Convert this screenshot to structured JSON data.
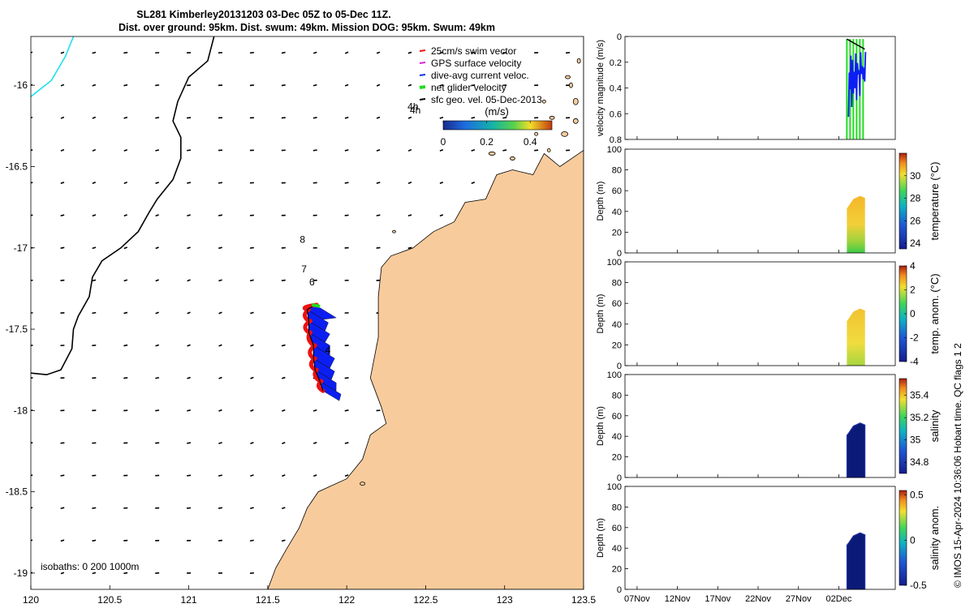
{
  "title_line1": "SL281 Kimberley20131203 03-Dec 05Z to 05-Dec 11Z.",
  "title_line2": "Dist. over ground: 95km. Dist. swum: 49km. Mission DOG: 95km. Swum: 49km",
  "isobaths_label": "isobaths: 0   200  1000m",
  "footer_text": "© IMOS 15-Apr-2024 10:36:06 Hobart time. QC flags 1  2",
  "colors": {
    "land": "#f8cb9c",
    "isobath200": "#000000",
    "isobath1000": "#22e0ec",
    "glider_blue": "#0b1ff2",
    "glider_red": "#ee1111",
    "glider_green": "#22dd22",
    "salinity_dark": "#0b1a78"
  },
  "chart_data": [
    {
      "type": "scatter",
      "name": "map",
      "xlim": [
        120,
        123.5
      ],
      "ylim": [
        -19.1,
        -15.7
      ],
      "x_ticks": [
        120,
        120.5,
        121,
        121.5,
        122,
        122.5,
        123,
        123.5
      ],
      "x_tick_labels": [
        "120",
        "120.5",
        "121",
        "121.5",
        "122",
        "122.5",
        "123",
        "123.5"
      ],
      "y_ticks": [
        -16,
        -16.5,
        -17,
        -17.5,
        -18,
        -18.5,
        -19
      ],
      "y_tick_labels": [
        "-16",
        "-16.5",
        "-17",
        "-17.5",
        "-18",
        "-18.5",
        "-19"
      ],
      "legend_entries": [
        "25cm/s swim vector",
        "GPS surface velocity",
        "dive-avg current veloc.",
        "net glider velocity",
        "sfc geo. vel. 05-Dec-2013"
      ],
      "legend_colors": [
        "#ee1111",
        "#dd22dd",
        "#1133ee",
        "#22dd22",
        "#000000"
      ],
      "legend_placement": "top-right",
      "colorbar_label": "(m/s)",
      "colorbar_range": [
        0,
        0.5
      ],
      "colorbar_ticks": [
        0,
        0.2,
        0.4
      ],
      "colorbar_tick_labels": [
        "0",
        "0.2",
        "0.4"
      ],
      "time_labels": [
        {
          "text": "4h",
          "lon": 122.42,
          "lat": -16.15
        },
        {
          "text": "8",
          "lon": 121.72,
          "lat": -16.97
        },
        {
          "text": "7",
          "lon": 121.73,
          "lat": -17.15
        },
        {
          "text": "6",
          "lon": 121.78,
          "lat": -17.23
        },
        {
          "text": "4",
          "lon": 121.88,
          "lat": -17.65
        }
      ],
      "glider_track": [
        [
          121.85,
          -17.88
        ],
        [
          121.83,
          -17.82
        ],
        [
          121.8,
          -17.75
        ],
        [
          121.79,
          -17.68
        ],
        [
          121.79,
          -17.6
        ],
        [
          121.76,
          -17.52
        ],
        [
          121.76,
          -17.45
        ],
        [
          121.75,
          -17.38
        ],
        [
          121.8,
          -17.35
        ]
      ],
      "isobath_200m": [
        [
          121.16,
          -15.7
        ],
        [
          121.12,
          -15.85
        ],
        [
          121.0,
          -15.95
        ],
        [
          120.93,
          -16.1
        ],
        [
          120.9,
          -16.22
        ],
        [
          120.95,
          -16.32
        ],
        [
          120.95,
          -16.45
        ],
        [
          120.9,
          -16.58
        ],
        [
          120.8,
          -16.7
        ],
        [
          120.75,
          -16.78
        ],
        [
          120.68,
          -16.9
        ],
        [
          120.57,
          -17.0
        ],
        [
          120.45,
          -17.08
        ],
        [
          120.39,
          -17.18
        ],
        [
          120.37,
          -17.3
        ],
        [
          120.3,
          -17.42
        ],
        [
          120.27,
          -17.5
        ],
        [
          120.26,
          -17.62
        ],
        [
          120.19,
          -17.75
        ],
        [
          120.1,
          -17.78
        ],
        [
          120.0,
          -17.77
        ]
      ],
      "isobath_1000m": [
        [
          120.27,
          -15.7
        ],
        [
          120.22,
          -15.82
        ],
        [
          120.13,
          -15.97
        ],
        [
          120.0,
          -16.07
        ]
      ],
      "coastline": [
        [
          123.5,
          -15.7
        ],
        [
          123.5,
          -16.4
        ],
        [
          123.35,
          -16.5
        ],
        [
          123.25,
          -16.42
        ],
        [
          123.18,
          -16.55
        ],
        [
          123.05,
          -16.52
        ],
        [
          122.95,
          -16.55
        ],
        [
          122.88,
          -16.7
        ],
        [
          122.75,
          -16.72
        ],
        [
          122.68,
          -16.84
        ],
        [
          122.55,
          -16.9
        ],
        [
          122.42,
          -17.0
        ],
        [
          122.28,
          -17.05
        ],
        [
          122.22,
          -17.12
        ],
        [
          122.2,
          -17.3
        ],
        [
          122.2,
          -17.55
        ],
        [
          122.15,
          -17.8
        ],
        [
          122.22,
          -17.98
        ],
        [
          122.25,
          -18.08
        ],
        [
          122.15,
          -18.15
        ],
        [
          122.1,
          -18.3
        ],
        [
          122.0,
          -18.42
        ],
        [
          121.82,
          -18.5
        ],
        [
          121.75,
          -18.6
        ],
        [
          121.7,
          -18.72
        ],
        [
          121.62,
          -18.85
        ],
        [
          121.55,
          -18.97
        ],
        [
          121.5,
          -19.1
        ],
        [
          123.5,
          -19.1
        ]
      ]
    },
    {
      "type": "line",
      "name": "velocity",
      "ylabel": "velocity magnitude (m/s)",
      "ylim": [
        0,
        0.8
      ],
      "y_ticks": [
        0,
        0.2,
        0.4,
        0.6,
        0.8
      ],
      "y_tick_labels": [
        "0",
        "0.2",
        "0.4",
        "0.6",
        "0.8"
      ]
    },
    {
      "type": "heatmap",
      "name": "temperature",
      "ylabel": "Depth (m)",
      "colorbar_label": "temperature (°C)",
      "ylim": [
        100,
        0
      ],
      "y_ticks": [
        0,
        20,
        40,
        60,
        80,
        100
      ],
      "y_tick_labels": [
        "0",
        "20",
        "40",
        "60",
        "80",
        "100"
      ],
      "colorbar_range": [
        23.5,
        32
      ],
      "colorbar_ticks": [
        24,
        26,
        28,
        30
      ],
      "colorbar_tick_labels": [
        "24",
        "26",
        "28",
        "30"
      ],
      "max_depth": 55
    },
    {
      "type": "heatmap",
      "name": "temp_anom",
      "ylabel": "Depth (m)",
      "colorbar_label": "temp. anom. (°C)",
      "ylim": [
        100,
        0
      ],
      "y_ticks": [
        0,
        20,
        40,
        60,
        80,
        100
      ],
      "y_tick_labels": [
        "0",
        "20",
        "40",
        "60",
        "80",
        "100"
      ],
      "colorbar_range": [
        -4,
        4
      ],
      "colorbar_ticks": [
        -4,
        -2,
        0,
        2,
        4
      ],
      "colorbar_tick_labels": [
        "-4",
        "-2",
        "0",
        "2",
        "4"
      ],
      "max_depth": 55
    },
    {
      "type": "heatmap",
      "name": "salinity",
      "ylabel": "Depth (m)",
      "colorbar_label": "salinity",
      "ylim": [
        100,
        0
      ],
      "y_ticks": [
        0,
        20,
        40,
        60,
        80,
        100
      ],
      "y_tick_labels": [
        "0",
        "20",
        "40",
        "60",
        "80",
        "100"
      ],
      "colorbar_range": [
        34.7,
        35.55
      ],
      "colorbar_ticks": [
        34.8,
        35,
        35.2,
        35.4
      ],
      "colorbar_tick_labels": [
        "34.8",
        "35",
        "35.2",
        "35.4"
      ],
      "max_depth": 53
    },
    {
      "type": "heatmap",
      "name": "salinity_anom",
      "ylabel": "Depth (m)",
      "colorbar_label": "salinity anom.",
      "ylim": [
        100,
        0
      ],
      "y_ticks": [
        0,
        20,
        40,
        60,
        80,
        100
      ],
      "y_tick_labels": [
        "0",
        "20",
        "40",
        "60",
        "80",
        "100"
      ],
      "colorbar_range": [
        -0.5,
        0.55
      ],
      "colorbar_ticks": [
        -0.5,
        0,
        0.5
      ],
      "colorbar_tick_labels": [
        "-0.5",
        "0",
        "0.5"
      ],
      "max_depth": 55
    }
  ],
  "time_axis": {
    "xlim_days": [
      -1.5,
      32
    ],
    "tick_days": [
      0,
      5,
      10,
      15,
      20,
      25
    ],
    "tick_labels": [
      "07Nov",
      "12Nov",
      "17Nov",
      "22Nov",
      "27Nov",
      "02Dec"
    ],
    "data_start_day": 26,
    "data_end_day": 28.25
  }
}
